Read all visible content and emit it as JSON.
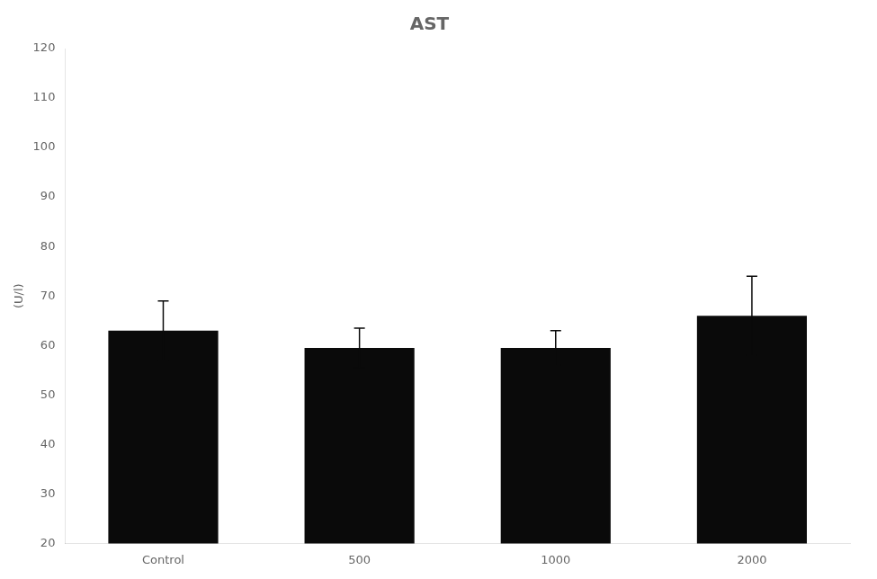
{
  "chart_data": {
    "type": "bar",
    "title": "AST",
    "ylabel": "(U/l)",
    "categories": [
      "Control",
      "500",
      "1000",
      "2000"
    ],
    "values": [
      63.0,
      59.5,
      59.5,
      66.0
    ],
    "errors": [
      6.0,
      4.0,
      3.5,
      8.0
    ],
    "color": "#0a0a0a",
    "ylim": [
      20,
      120
    ],
    "yticks": [
      20,
      30,
      40,
      50,
      60,
      70,
      80,
      90,
      100,
      110,
      120
    ],
    "grid": false
  }
}
